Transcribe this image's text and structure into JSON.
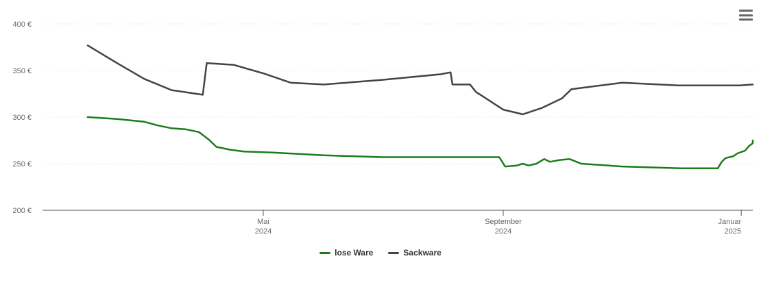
{
  "menu": {
    "icon": "hamburger-menu-icon"
  },
  "chart_data": {
    "type": "line",
    "title": "",
    "xlabel": "",
    "ylabel": "",
    "ylim": [
      200,
      400
    ],
    "y_ticks": [
      {
        "value": 200,
        "label": "200 €"
      },
      {
        "value": 250,
        "label": "250 €"
      },
      {
        "value": 300,
        "label": "300 €"
      },
      {
        "value": 350,
        "label": "350 €"
      },
      {
        "value": 400,
        "label": "400 €"
      }
    ],
    "xlim": [
      "2024-02-01",
      "2025-01-07"
    ],
    "x_ticks": [
      {
        "date": "2024-05-01",
        "month": "Mai",
        "year": "2024"
      },
      {
        "date": "2024-09-01",
        "month": "September",
        "year": "2024"
      },
      {
        "date": "2025-01-01",
        "month": "Januar",
        "year": "2025"
      }
    ],
    "legend": "bottom-center",
    "series": [
      {
        "name": "lose Ware",
        "color": "#1a7d1a",
        "points": [
          [
            "2024-02-01",
            300
          ],
          [
            "2024-02-16",
            298
          ],
          [
            "2024-03-01",
            295
          ],
          [
            "2024-03-08",
            291
          ],
          [
            "2024-03-15",
            288
          ],
          [
            "2024-03-22",
            287
          ],
          [
            "2024-03-29",
            284
          ],
          [
            "2024-04-03",
            276
          ],
          [
            "2024-04-07",
            268
          ],
          [
            "2024-04-14",
            265
          ],
          [
            "2024-04-21",
            263
          ],
          [
            "2024-05-06",
            262
          ],
          [
            "2024-06-01",
            259
          ],
          [
            "2024-07-01",
            257
          ],
          [
            "2024-08-01",
            257
          ],
          [
            "2024-08-30",
            257
          ],
          [
            "2024-09-02",
            247
          ],
          [
            "2024-09-08",
            248
          ],
          [
            "2024-09-11",
            250
          ],
          [
            "2024-09-14",
            248
          ],
          [
            "2024-09-18",
            250
          ],
          [
            "2024-09-22",
            255
          ],
          [
            "2024-09-25",
            252
          ],
          [
            "2024-09-30",
            254
          ],
          [
            "2024-10-05",
            255
          ],
          [
            "2024-10-11",
            250
          ],
          [
            "2024-11-01",
            247
          ],
          [
            "2024-12-01",
            245
          ],
          [
            "2024-12-20",
            245
          ],
          [
            "2024-12-22",
            252
          ],
          [
            "2024-12-24",
            256
          ],
          [
            "2024-12-28",
            258
          ],
          [
            "2024-12-30",
            261
          ],
          [
            "2025-01-03",
            264
          ],
          [
            "2025-01-05",
            269
          ],
          [
            "2025-01-07",
            272
          ],
          [
            "2025-01-11",
            275
          ]
        ]
      },
      {
        "name": "Sackware",
        "color": "#434348",
        "points": [
          [
            "2024-02-01",
            377
          ],
          [
            "2024-02-16",
            358
          ],
          [
            "2024-03-01",
            341
          ],
          [
            "2024-03-15",
            329
          ],
          [
            "2024-03-31",
            324
          ],
          [
            "2024-04-02",
            358
          ],
          [
            "2024-04-16",
            356
          ],
          [
            "2024-05-01",
            347
          ],
          [
            "2024-05-15",
            337
          ],
          [
            "2024-06-01",
            335
          ],
          [
            "2024-07-01",
            340
          ],
          [
            "2024-07-31",
            346
          ],
          [
            "2024-08-05",
            348
          ],
          [
            "2024-08-06",
            335
          ],
          [
            "2024-08-15",
            335
          ],
          [
            "2024-08-18",
            327
          ],
          [
            "2024-08-21",
            323
          ],
          [
            "2024-09-01",
            308
          ],
          [
            "2024-09-11",
            303
          ],
          [
            "2024-09-21",
            310
          ],
          [
            "2024-10-01",
            320
          ],
          [
            "2024-10-06",
            330
          ],
          [
            "2024-11-01",
            337
          ],
          [
            "2024-11-30",
            334
          ],
          [
            "2024-12-31",
            334
          ],
          [
            "2025-01-11",
            335
          ]
        ]
      }
    ]
  }
}
